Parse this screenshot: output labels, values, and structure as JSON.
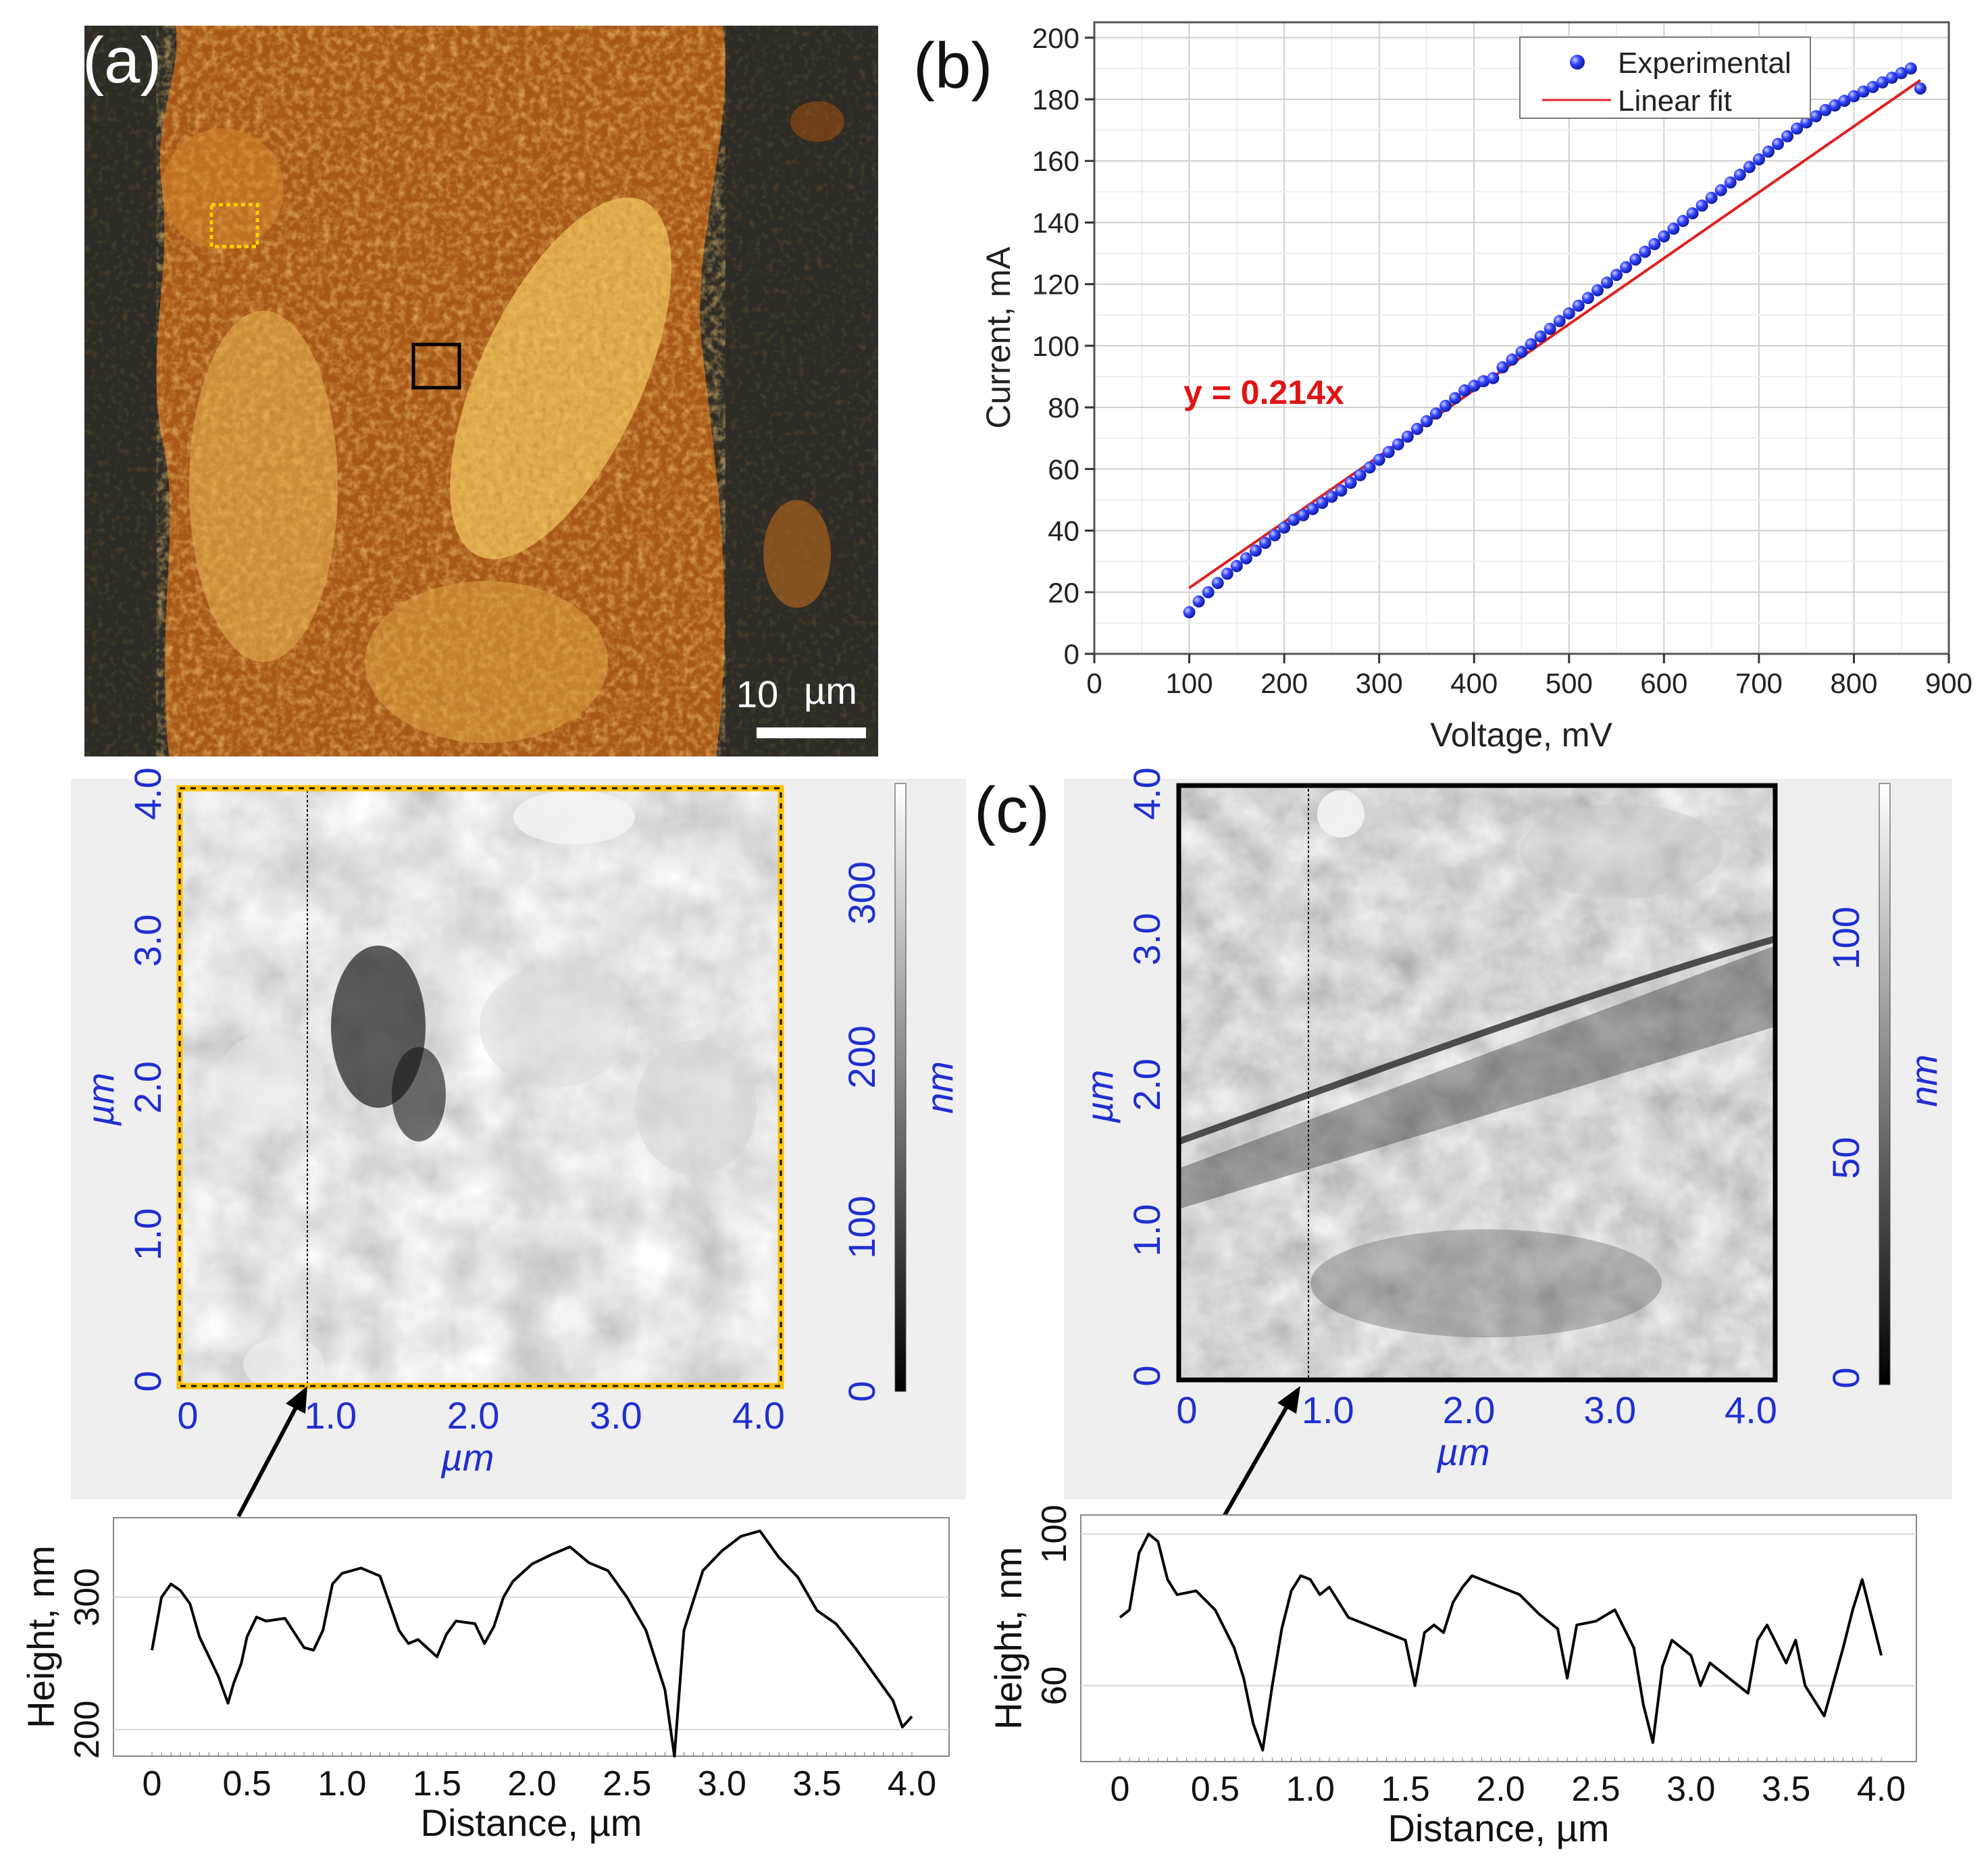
{
  "panel_a": {
    "label": "(a)",
    "scale_bar_value": "10",
    "scale_bar_unit": "µm",
    "colors": {
      "dark": "#2b2a25",
      "orange": "#b8641a",
      "gold": "#e8b650"
    }
  },
  "panel_c_label": "(c)",
  "chart_data": [
    {
      "id": "b",
      "label": "(b)",
      "type": "scatter",
      "xlabel": "Voltage, mV",
      "ylabel": "Current, mA",
      "xlim": [
        0,
        900
      ],
      "ylim": [
        0,
        205
      ],
      "xticks": [
        0,
        100,
        200,
        300,
        400,
        500,
        600,
        700,
        800,
        900
      ],
      "yticks": [
        0,
        20,
        40,
        60,
        80,
        100,
        120,
        140,
        160,
        180,
        200
      ],
      "grid": true,
      "legend_position": "top-right",
      "annotation": "y = 0.214x",
      "series": [
        {
          "name": "Experimental",
          "kind": "markers",
          "color": "#1a2be8",
          "x": [
            100,
            110,
            120,
            130,
            140,
            150,
            160,
            170,
            180,
            190,
            200,
            210,
            220,
            230,
            240,
            250,
            260,
            270,
            280,
            290,
            300,
            310,
            320,
            330,
            340,
            350,
            360,
            370,
            380,
            390,
            400,
            410,
            420,
            430,
            440,
            450,
            460,
            470,
            480,
            490,
            500,
            510,
            520,
            530,
            540,
            550,
            560,
            570,
            580,
            590,
            600,
            610,
            620,
            630,
            640,
            650,
            660,
            670,
            680,
            690,
            700,
            710,
            720,
            730,
            740,
            750,
            760,
            770,
            780,
            790,
            800,
            810,
            820,
            830,
            840,
            850,
            860,
            870
          ],
          "y": [
            13.5,
            17,
            20,
            23,
            26,
            28.5,
            31,
            33.5,
            36,
            38.5,
            41,
            43.5,
            45,
            47,
            49,
            51,
            53,
            55.5,
            58,
            60.5,
            63,
            65.5,
            68,
            70.5,
            73,
            75.5,
            78,
            80.5,
            83,
            85.5,
            87,
            88.5,
            89.5,
            93,
            95.5,
            98,
            100.5,
            103,
            105.5,
            108,
            110.5,
            113,
            115.5,
            118,
            120.5,
            123,
            125.5,
            128,
            130.5,
            133,
            135.5,
            138,
            140.5,
            143,
            145.5,
            148,
            150.5,
            153,
            155.5,
            158,
            160.5,
            163,
            165.5,
            168,
            170.5,
            172.5,
            174.5,
            176.5,
            178,
            179.5,
            181,
            182.5,
            184,
            185.5,
            187,
            188.5,
            190,
            183.5
          ]
        },
        {
          "name": "Linear fit",
          "kind": "line",
          "color": "#e02020",
          "x": [
            100,
            870
          ],
          "y": [
            21.4,
            186.2
          ]
        }
      ]
    },
    {
      "id": "afm-left",
      "type": "heatmap",
      "xlabel": "µm",
      "ylabel": "µm",
      "xticks": [
        "0",
        "1.0",
        "2.0",
        "3.0",
        "4.0"
      ],
      "yticks": [
        "0",
        "1.0",
        "2.0",
        "3.0",
        "4.0"
      ],
      "colorbar_label": "nm",
      "colorbar_ticks": [
        "0",
        "100",
        "200",
        "300"
      ],
      "frame_color": "#ffc000"
    },
    {
      "id": "profile-left",
      "type": "line",
      "xlabel": "Distance, µm",
      "ylabel": "Height, nm",
      "xlim": [
        0,
        4.0
      ],
      "ylim": [
        180,
        360
      ],
      "xticks": [
        "0",
        "0.5",
        "1.0",
        "1.5",
        "2.0",
        "2.5",
        "3.0",
        "3.5",
        "4.0"
      ],
      "yticks": [
        200,
        300
      ],
      "x": [
        0,
        0.05,
        0.1,
        0.15,
        0.2,
        0.25,
        0.3,
        0.35,
        0.4,
        0.43,
        0.47,
        0.5,
        0.55,
        0.6,
        0.7,
        0.8,
        0.85,
        0.9,
        0.95,
        1.0,
        1.1,
        1.2,
        1.3,
        1.35,
        1.4,
        1.5,
        1.55,
        1.6,
        1.7,
        1.75,
        1.8,
        1.85,
        1.9,
        2.0,
        2.1,
        2.2,
        2.3,
        2.4,
        2.5,
        2.6,
        2.7,
        2.75,
        2.8,
        2.9,
        3.0,
        3.1,
        3.2,
        3.3,
        3.4,
        3.5,
        3.6,
        3.7,
        3.8,
        3.9,
        3.95,
        4.0
      ],
      "y": [
        260,
        300,
        310,
        305,
        295,
        270,
        255,
        240,
        220,
        235,
        250,
        270,
        285,
        282,
        284,
        262,
        260,
        275,
        310,
        318,
        322,
        316,
        275,
        265,
        268,
        255,
        272,
        282,
        280,
        265,
        278,
        300,
        312,
        325,
        332,
        338,
        326,
        320,
        300,
        275,
        230,
        180,
        275,
        320,
        335,
        346,
        350,
        330,
        315,
        290,
        280,
        262,
        242,
        222,
        202,
        210
      ]
    },
    {
      "id": "afm-right",
      "type": "heatmap",
      "xlabel": "µm",
      "ylabel": "µm",
      "xticks": [
        "0",
        "1.0",
        "2.0",
        "3.0",
        "4.0"
      ],
      "yticks": [
        "0",
        "1.0",
        "2.0",
        "3.0",
        "4.0"
      ],
      "colorbar_label": "nm",
      "colorbar_ticks": [
        "0",
        "50",
        "100"
      ],
      "frame_color": "#000000"
    },
    {
      "id": "profile-right",
      "type": "line",
      "xlabel": "Distance, µm",
      "ylabel": "Height, nm",
      "xlim": [
        0,
        4.0
      ],
      "ylim": [
        40,
        105
      ],
      "xticks": [
        "0",
        "0.5",
        "1.0",
        "1.5",
        "2.0",
        "2.5",
        "3.0",
        "3.5",
        "4.0"
      ],
      "yticks": [
        60,
        100
      ],
      "x": [
        0,
        0.05,
        0.1,
        0.15,
        0.2,
        0.25,
        0.3,
        0.4,
        0.5,
        0.6,
        0.65,
        0.7,
        0.75,
        0.8,
        0.85,
        0.9,
        0.95,
        1.0,
        1.05,
        1.1,
        1.2,
        1.3,
        1.4,
        1.5,
        1.55,
        1.6,
        1.65,
        1.7,
        1.75,
        1.8,
        1.85,
        1.9,
        2.0,
        2.1,
        2.2,
        2.3,
        2.35,
        2.4,
        2.5,
        2.6,
        2.7,
        2.75,
        2.8,
        2.85,
        2.9,
        3.0,
        3.05,
        3.1,
        3.2,
        3.3,
        3.35,
        3.4,
        3.5,
        3.55,
        3.6,
        3.7,
        3.8,
        3.85,
        3.9,
        4.0
      ],
      "y": [
        78,
        80,
        95,
        100,
        98,
        88,
        84,
        85,
        80,
        70,
        62,
        50,
        43,
        60,
        75,
        85,
        89,
        88,
        84,
        86,
        78,
        76,
        74,
        72,
        60,
        74,
        76,
        74,
        82,
        86,
        89,
        88,
        86,
        84,
        79,
        75,
        62,
        76,
        77,
        80,
        70,
        55,
        45,
        65,
        72,
        68,
        60,
        66,
        62,
        58,
        72,
        76,
        66,
        72,
        60,
        52,
        70,
        80,
        88,
        68
      ]
    }
  ]
}
